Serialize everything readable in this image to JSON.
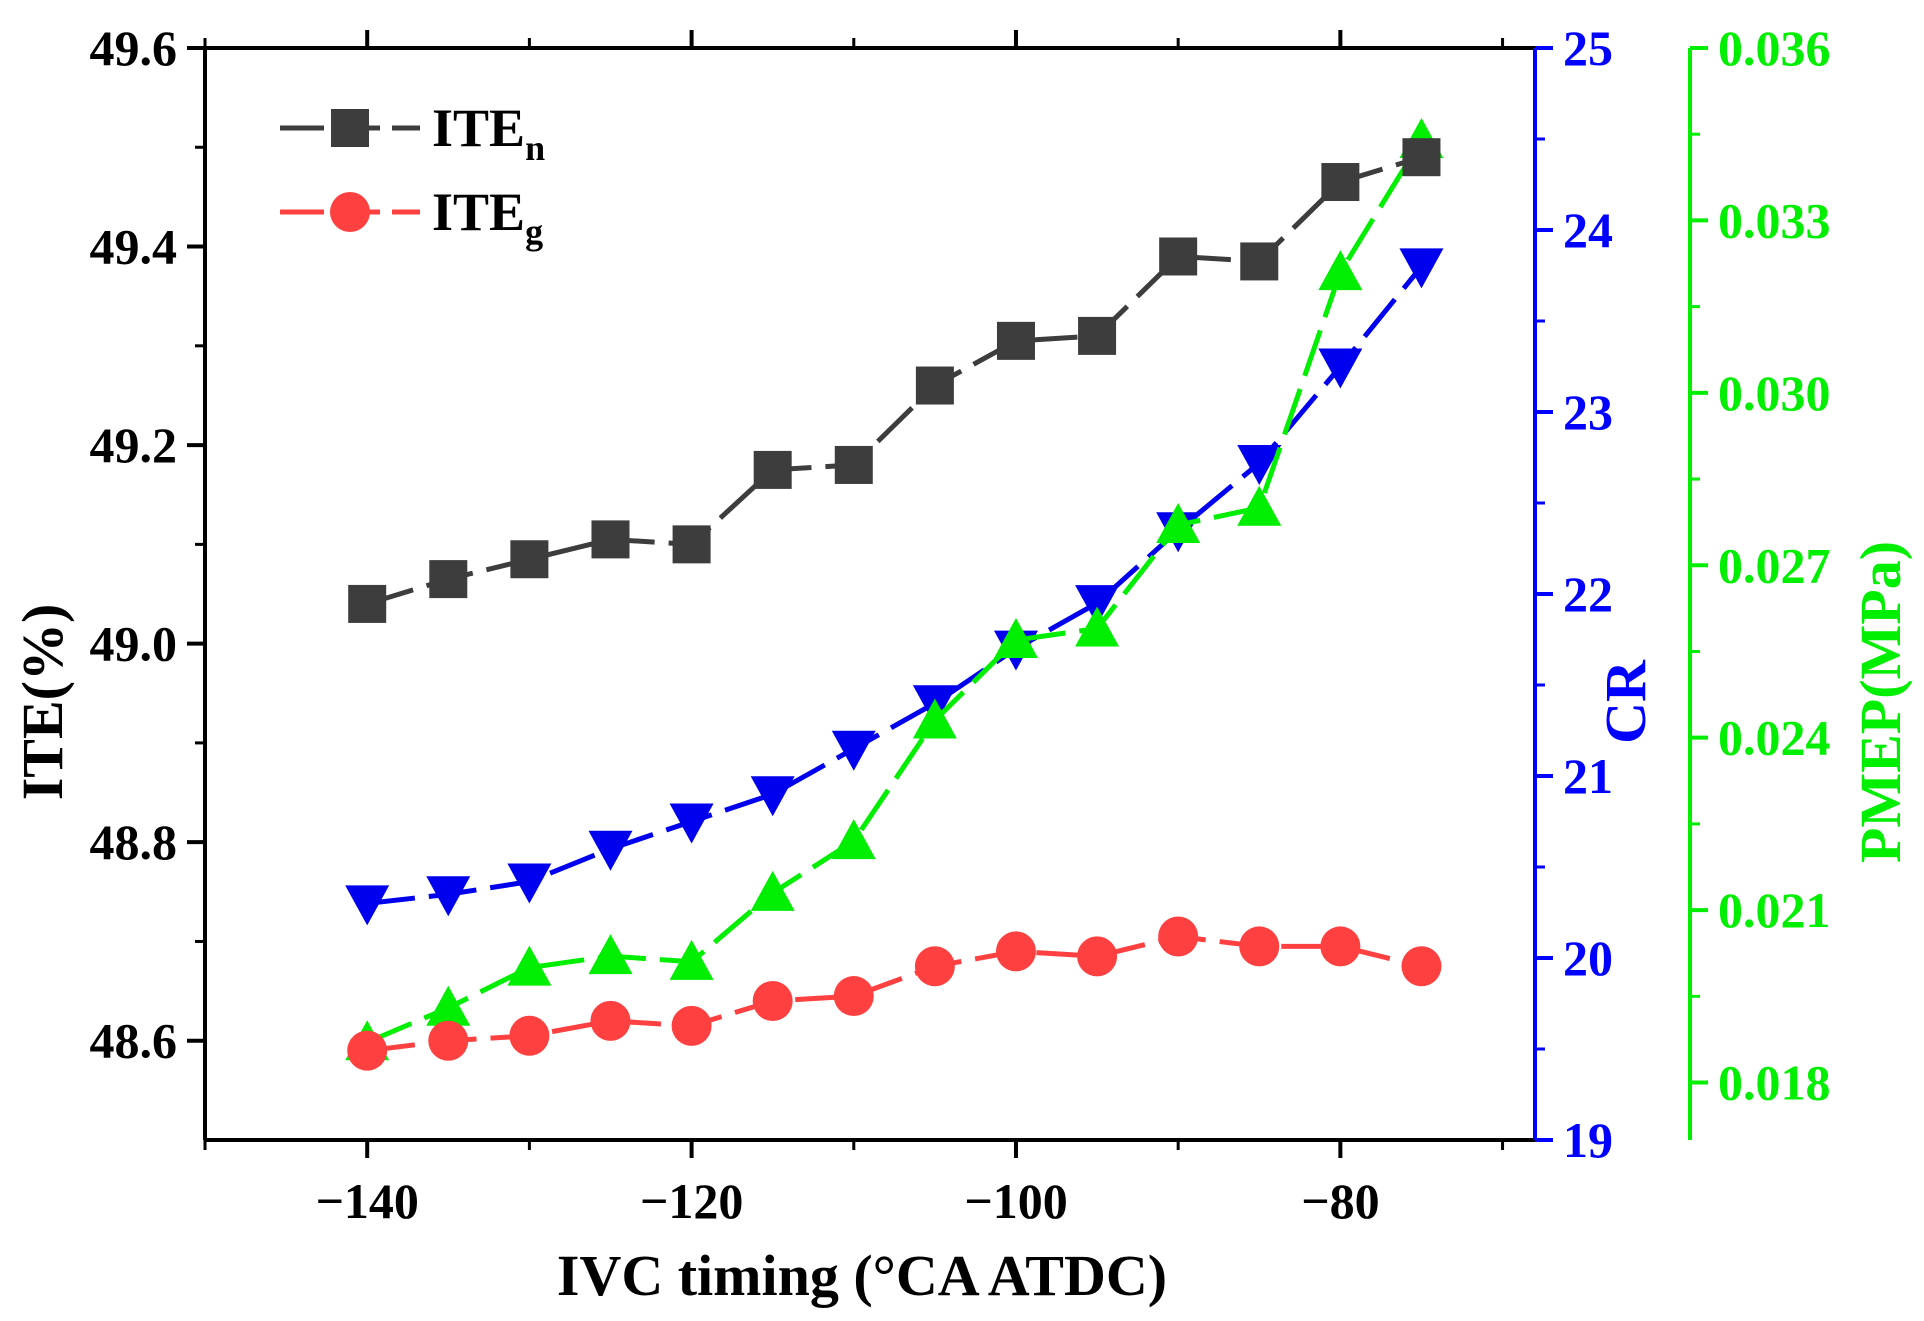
{
  "chart_data": {
    "type": "line",
    "xlabel": "IVC timing (°CA ATDC)",
    "xlim": [
      -150,
      -68
    ],
    "x_ticks": [
      -140,
      -120,
      -100,
      -80
    ],
    "x_tick_labels": [
      "−140",
      "−120",
      "−100",
      "−80"
    ],
    "axes": {
      "left": {
        "label": "ITE(%)",
        "lim": [
          48.5,
          49.6
        ],
        "ticks": [
          48.6,
          48.8,
          49.0,
          49.2,
          49.4,
          49.6
        ],
        "tick_labels": [
          "48.6",
          "48.8",
          "49.0",
          "49.2",
          "49.4",
          "49.6"
        ],
        "color": "#000000"
      },
      "right1": {
        "label": "CR",
        "lim": [
          19,
          25
        ],
        "ticks": [
          19,
          20,
          21,
          22,
          23,
          24,
          25
        ],
        "tick_labels": [
          "19",
          "20",
          "21",
          "22",
          "23",
          "24",
          "25"
        ],
        "color": "#0000ff"
      },
      "right2": {
        "label": "PMEP(MPa)",
        "lim": [
          0.017,
          0.036
        ],
        "ticks": [
          0.018,
          0.021,
          0.024,
          0.027,
          0.03,
          0.033,
          0.036
        ],
        "tick_labels": [
          "0.018",
          "0.021",
          "0.024",
          "0.027",
          "0.030",
          "0.033",
          "0.036"
        ],
        "color": "#00ee00"
      }
    },
    "x": [
      -140,
      -135,
      -130,
      -125,
      -120,
      -115,
      -110,
      -105,
      -100,
      -95,
      -90,
      -85,
      -80,
      -75
    ],
    "series": [
      {
        "key": "iten",
        "name": "ITE",
        "subscript": "n",
        "axis": "left",
        "color": "#3d3d3d",
        "marker": "square",
        "values": [
          49.04,
          49.065,
          49.085,
          49.105,
          49.1,
          49.175,
          49.18,
          49.26,
          49.305,
          49.31,
          49.39,
          49.385,
          49.465,
          49.49
        ]
      },
      {
        "key": "iteg",
        "name": "ITE",
        "subscript": "g",
        "axis": "left",
        "color": "#ff4040",
        "marker": "circle",
        "values": [
          48.59,
          48.6,
          48.605,
          48.62,
          48.615,
          48.64,
          48.645,
          48.675,
          48.69,
          48.685,
          48.705,
          48.695,
          48.695,
          48.675
        ]
      },
      {
        "key": "cr",
        "axis": "right1",
        "color": "#0000ee",
        "marker": "triangle-down",
        "values": [
          20.3,
          20.35,
          20.42,
          20.6,
          20.75,
          20.9,
          21.15,
          21.4,
          21.7,
          21.95,
          22.35,
          22.72,
          23.25,
          23.8
        ]
      },
      {
        "key": "pmep",
        "axis": "right2",
        "color": "#00ee00",
        "marker": "triangle-up",
        "values": [
          0.0187,
          0.0193,
          0.02,
          0.0202,
          0.0201,
          0.0213,
          0.0222,
          0.0243,
          0.0257,
          0.0259,
          0.0277,
          0.028,
          0.0321,
          0.0344
        ]
      }
    ],
    "legend": {
      "position": "top-left",
      "entries": [
        "iten",
        "iteg"
      ]
    }
  }
}
